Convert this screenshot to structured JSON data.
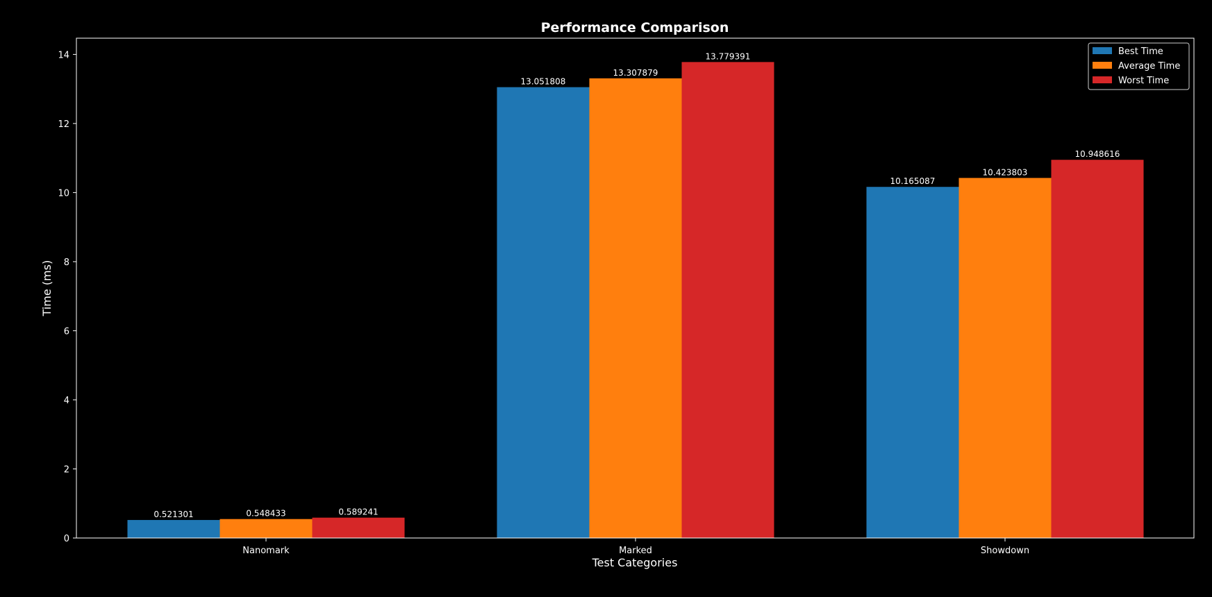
{
  "chart_data": {
    "type": "bar",
    "title": "Performance Comparison",
    "xlabel": "Test Categories",
    "ylabel": "Time (ms)",
    "categories": [
      "Nanomark",
      "Marked",
      "Showdown"
    ],
    "ylim": [
      0,
      14.47
    ],
    "yticks": [
      0,
      2,
      4,
      6,
      8,
      10,
      12,
      14
    ],
    "grid": false,
    "legend_position": "top-right",
    "series": [
      {
        "name": "Best Time",
        "color": "#1f77b4",
        "values": [
          0.521301,
          13.051808,
          10.165087
        ],
        "labels": [
          "0.521301",
          "13.051808",
          "10.165087"
        ]
      },
      {
        "name": "Average Time",
        "color": "#ff7f0e",
        "values": [
          0.548433,
          13.307879,
          10.423803
        ],
        "labels": [
          "0.548433",
          "13.307879",
          "10.423803"
        ]
      },
      {
        "name": "Worst Time",
        "color": "#d62728",
        "values": [
          0.589241,
          13.779391,
          10.948616
        ],
        "labels": [
          "0.589241",
          "13.779391",
          "10.948616"
        ]
      }
    ]
  }
}
